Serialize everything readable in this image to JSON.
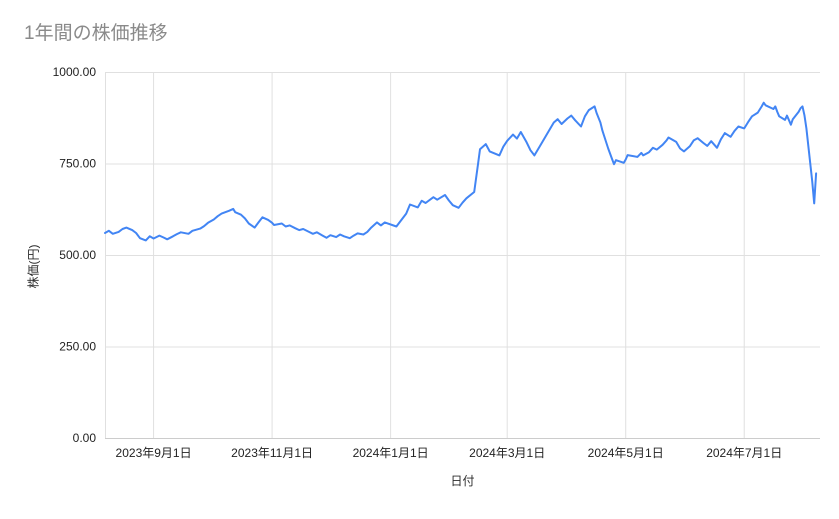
{
  "chart": {
    "title": "1年間の株価推移",
    "x_axis_title": "日付",
    "y_axis_title": "株価(円)"
  },
  "chart_data": {
    "type": "line",
    "title": "1年間の株価推移",
    "xlabel": "日付",
    "ylabel": "株価(円)",
    "series_name": "株価",
    "line_color": "#4285f4",
    "grid_color": "#e0e0e0",
    "axis_line_color": "#cccccc",
    "legend": "none",
    "grid": true,
    "ylim": [
      0,
      1000
    ],
    "y_ticks": [
      {
        "value": 0,
        "label": "0.00"
      },
      {
        "value": 250,
        "label": "250.00"
      },
      {
        "value": 500,
        "label": "500.00"
      },
      {
        "value": 750,
        "label": "750.00"
      },
      {
        "value": 1000,
        "label": "1000.00"
      }
    ],
    "x_domain": [
      "2023-08-07",
      "2024-08-09"
    ],
    "x_ticks": [
      {
        "date": "2023-09-01",
        "label": "2023年9月1日"
      },
      {
        "date": "2023-11-01",
        "label": "2023年11月1日"
      },
      {
        "date": "2024-01-01",
        "label": "2024年1月1日"
      },
      {
        "date": "2024-03-01",
        "label": "2024年3月1日"
      },
      {
        "date": "2024-05-01",
        "label": "2024年5月1日"
      },
      {
        "date": "2024-07-01",
        "label": "2024年7月1日"
      }
    ],
    "points": [
      [
        "2023-08-07",
        560
      ],
      [
        "2023-08-09",
        566
      ],
      [
        "2023-08-11",
        558
      ],
      [
        "2023-08-14",
        563
      ],
      [
        "2023-08-16",
        571
      ],
      [
        "2023-08-18",
        575
      ],
      [
        "2023-08-21",
        568
      ],
      [
        "2023-08-23",
        560
      ],
      [
        "2023-08-25",
        546
      ],
      [
        "2023-08-28",
        540
      ],
      [
        "2023-08-30",
        551
      ],
      [
        "2023-09-01",
        545
      ],
      [
        "2023-09-04",
        553
      ],
      [
        "2023-09-06",
        548
      ],
      [
        "2023-09-08",
        543
      ],
      [
        "2023-09-11",
        551
      ],
      [
        "2023-09-13",
        557
      ],
      [
        "2023-09-15",
        562
      ],
      [
        "2023-09-19",
        558
      ],
      [
        "2023-09-21",
        566
      ],
      [
        "2023-09-25",
        572
      ],
      [
        "2023-09-27",
        579
      ],
      [
        "2023-09-29",
        588
      ],
      [
        "2023-10-02",
        597
      ],
      [
        "2023-10-04",
        606
      ],
      [
        "2023-10-06",
        613
      ],
      [
        "2023-10-10",
        621
      ],
      [
        "2023-10-12",
        626
      ],
      [
        "2023-10-13",
        617
      ],
      [
        "2023-10-16",
        610
      ],
      [
        "2023-10-18",
        600
      ],
      [
        "2023-10-20",
        586
      ],
      [
        "2023-10-23",
        575
      ],
      [
        "2023-10-25",
        589
      ],
      [
        "2023-10-27",
        603
      ],
      [
        "2023-10-30",
        596
      ],
      [
        "2023-11-01",
        588
      ],
      [
        "2023-11-02",
        582
      ],
      [
        "2023-11-06",
        586
      ],
      [
        "2023-11-08",
        578
      ],
      [
        "2023-11-10",
        581
      ],
      [
        "2023-11-13",
        573
      ],
      [
        "2023-11-15",
        568
      ],
      [
        "2023-11-17",
        571
      ],
      [
        "2023-11-20",
        563
      ],
      [
        "2023-11-22",
        558
      ],
      [
        "2023-11-24",
        562
      ],
      [
        "2023-11-27",
        553
      ],
      [
        "2023-11-29",
        547
      ],
      [
        "2023-12-01",
        554
      ],
      [
        "2023-12-04",
        549
      ],
      [
        "2023-12-06",
        556
      ],
      [
        "2023-12-08",
        551
      ],
      [
        "2023-12-11",
        546
      ],
      [
        "2023-12-13",
        553
      ],
      [
        "2023-12-15",
        559
      ],
      [
        "2023-12-18",
        556
      ],
      [
        "2023-12-20",
        563
      ],
      [
        "2023-12-22",
        575
      ],
      [
        "2023-12-25",
        589
      ],
      [
        "2023-12-27",
        581
      ],
      [
        "2023-12-29",
        589
      ],
      [
        "2024-01-04",
        578
      ],
      [
        "2024-01-09",
        613
      ],
      [
        "2024-01-11",
        638
      ],
      [
        "2024-01-15",
        630
      ],
      [
        "2024-01-17",
        648
      ],
      [
        "2024-01-19",
        642
      ],
      [
        "2024-01-23",
        658
      ],
      [
        "2024-01-25",
        651
      ],
      [
        "2024-01-29",
        664
      ],
      [
        "2024-01-31",
        649
      ],
      [
        "2024-02-02",
        636
      ],
      [
        "2024-02-05",
        629
      ],
      [
        "2024-02-07",
        643
      ],
      [
        "2024-02-09",
        655
      ],
      [
        "2024-02-13",
        672
      ],
      [
        "2024-02-15",
        748
      ],
      [
        "2024-02-16",
        789
      ],
      [
        "2024-02-19",
        803
      ],
      [
        "2024-02-21",
        783
      ],
      [
        "2024-02-26",
        772
      ],
      [
        "2024-02-28",
        796
      ],
      [
        "2024-03-01",
        812
      ],
      [
        "2024-03-04",
        829
      ],
      [
        "2024-03-06",
        818
      ],
      [
        "2024-03-08",
        836
      ],
      [
        "2024-03-11",
        808
      ],
      [
        "2024-03-13",
        786
      ],
      [
        "2024-03-15",
        772
      ],
      [
        "2024-03-18",
        799
      ],
      [
        "2024-03-21",
        826
      ],
      [
        "2024-03-25",
        862
      ],
      [
        "2024-03-27",
        871
      ],
      [
        "2024-03-29",
        858
      ],
      [
        "2024-04-01",
        873
      ],
      [
        "2024-04-03",
        881
      ],
      [
        "2024-04-05",
        868
      ],
      [
        "2024-04-08",
        851
      ],
      [
        "2024-04-10",
        879
      ],
      [
        "2024-04-12",
        896
      ],
      [
        "2024-04-15",
        906
      ],
      [
        "2024-04-16",
        888
      ],
      [
        "2024-04-18",
        862
      ],
      [
        "2024-04-19",
        840
      ],
      [
        "2024-04-22",
        791
      ],
      [
        "2024-04-24",
        762
      ],
      [
        "2024-04-25",
        748
      ],
      [
        "2024-04-26",
        759
      ],
      [
        "2024-04-30",
        752
      ],
      [
        "2024-05-01",
        761
      ],
      [
        "2024-05-02",
        773
      ],
      [
        "2024-05-07",
        768
      ],
      [
        "2024-05-09",
        779
      ],
      [
        "2024-05-10",
        772
      ],
      [
        "2024-05-13",
        781
      ],
      [
        "2024-05-15",
        793
      ],
      [
        "2024-05-17",
        788
      ],
      [
        "2024-05-20",
        801
      ],
      [
        "2024-05-22",
        813
      ],
      [
        "2024-05-23",
        821
      ],
      [
        "2024-05-27",
        809
      ],
      [
        "2024-05-29",
        791
      ],
      [
        "2024-05-31",
        783
      ],
      [
        "2024-06-03",
        797
      ],
      [
        "2024-06-05",
        813
      ],
      [
        "2024-06-07",
        819
      ],
      [
        "2024-06-10",
        806
      ],
      [
        "2024-06-12",
        798
      ],
      [
        "2024-06-14",
        811
      ],
      [
        "2024-06-17",
        793
      ],
      [
        "2024-06-19",
        816
      ],
      [
        "2024-06-21",
        833
      ],
      [
        "2024-06-24",
        823
      ],
      [
        "2024-06-26",
        839
      ],
      [
        "2024-06-28",
        851
      ],
      [
        "2024-07-01",
        846
      ],
      [
        "2024-07-03",
        863
      ],
      [
        "2024-07-05",
        879
      ],
      [
        "2024-07-08",
        889
      ],
      [
        "2024-07-10",
        906
      ],
      [
        "2024-07-11",
        916
      ],
      [
        "2024-07-12",
        909
      ],
      [
        "2024-07-16",
        899
      ],
      [
        "2024-07-17",
        906
      ],
      [
        "2024-07-18",
        891
      ],
      [
        "2024-07-19",
        879
      ],
      [
        "2024-07-22",
        869
      ],
      [
        "2024-07-23",
        881
      ],
      [
        "2024-07-25",
        856
      ],
      [
        "2024-07-26",
        871
      ],
      [
        "2024-07-29",
        891
      ],
      [
        "2024-07-30",
        901
      ],
      [
        "2024-07-31",
        906
      ],
      [
        "2024-08-01",
        881
      ],
      [
        "2024-08-02",
        846
      ],
      [
        "2024-08-05",
        702
      ],
      [
        "2024-08-06",
        641
      ],
      [
        "2024-08-07",
        723
      ]
    ]
  }
}
